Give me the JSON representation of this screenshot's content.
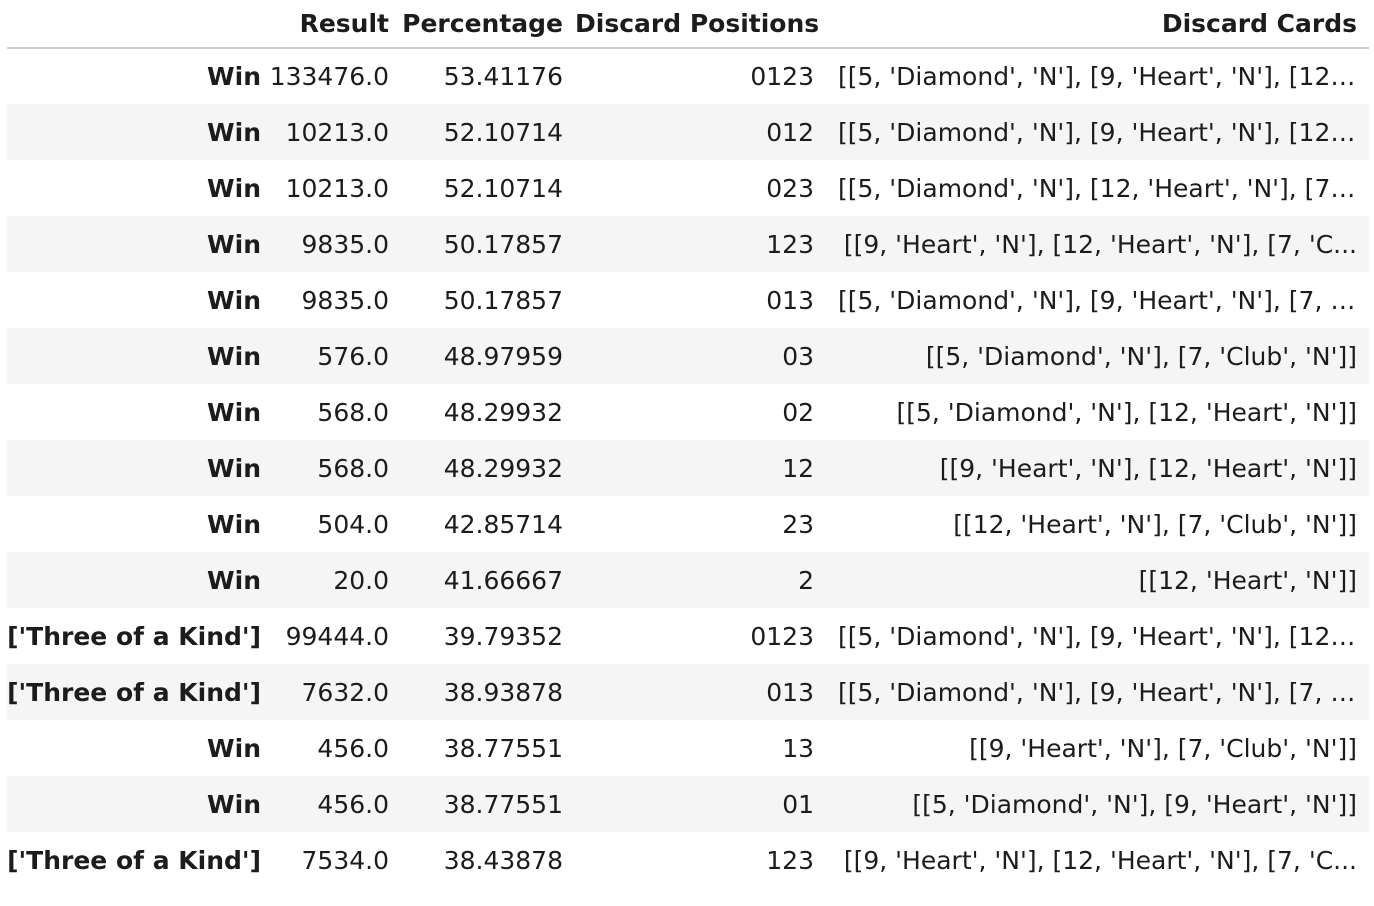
{
  "columns": {
    "index": "",
    "result": "Result",
    "percentage": "Percentage",
    "discard_positions": "Discard Positions",
    "discard_cards": "Discard Cards"
  },
  "rows": [
    {
      "index": "Win",
      "result": "133476.0",
      "percentage": "53.41176",
      "positions": "0123",
      "cards": "[[5, 'Diamond', 'N'], [9, 'Heart', 'N'], [12, ..."
    },
    {
      "index": "Win",
      "result": "10213.0",
      "percentage": "52.10714",
      "positions": "012",
      "cards": "[[5, 'Diamond', 'N'], [9, 'Heart', 'N'], [12, ..."
    },
    {
      "index": "Win",
      "result": "10213.0",
      "percentage": "52.10714",
      "positions": "023",
      "cards": "[[5, 'Diamond', 'N'], [12, 'Heart', 'N'], [7, ..."
    },
    {
      "index": "Win",
      "result": "9835.0",
      "percentage": "50.17857",
      "positions": "123",
      "cards": "[[9, 'Heart', 'N'], [12, 'Heart', 'N'], [7, 'C..."
    },
    {
      "index": "Win",
      "result": "9835.0",
      "percentage": "50.17857",
      "positions": "013",
      "cards": "[[5, 'Diamond', 'N'], [9, 'Heart', 'N'], [7, '..."
    },
    {
      "index": "Win",
      "result": "576.0",
      "percentage": "48.97959",
      "positions": "03",
      "cards": "[[5, 'Diamond', 'N'], [7, 'Club', 'N']]"
    },
    {
      "index": "Win",
      "result": "568.0",
      "percentage": "48.29932",
      "positions": "02",
      "cards": "[[5, 'Diamond', 'N'], [12, 'Heart', 'N']]"
    },
    {
      "index": "Win",
      "result": "568.0",
      "percentage": "48.29932",
      "positions": "12",
      "cards": "[[9, 'Heart', 'N'], [12, 'Heart', 'N']]"
    },
    {
      "index": "Win",
      "result": "504.0",
      "percentage": "42.85714",
      "positions": "23",
      "cards": "[[12, 'Heart', 'N'], [7, 'Club', 'N']]"
    },
    {
      "index": "Win",
      "result": "20.0",
      "percentage": "41.66667",
      "positions": "2",
      "cards": "[[12, 'Heart', 'N']]"
    },
    {
      "index": "['Three of a Kind']",
      "result": "99444.0",
      "percentage": "39.79352",
      "positions": "0123",
      "cards": "[[5, 'Diamond', 'N'], [9, 'Heart', 'N'], [12, ..."
    },
    {
      "index": "['Three of a Kind']",
      "result": "7632.0",
      "percentage": "38.93878",
      "positions": "013",
      "cards": "[[5, 'Diamond', 'N'], [9, 'Heart', 'N'], [7, '..."
    },
    {
      "index": "Win",
      "result": "456.0",
      "percentage": "38.77551",
      "positions": "13",
      "cards": "[[9, 'Heart', 'N'], [7, 'Club', 'N']]"
    },
    {
      "index": "Win",
      "result": "456.0",
      "percentage": "38.77551",
      "positions": "01",
      "cards": "[[5, 'Diamond', 'N'], [9, 'Heart', 'N']]"
    },
    {
      "index": "['Three of a Kind']",
      "result": "7534.0",
      "percentage": "38.43878",
      "positions": "123",
      "cards": "[[9, 'Heart', 'N'], [12, 'Heart', 'N'], [7, 'C..."
    }
  ]
}
